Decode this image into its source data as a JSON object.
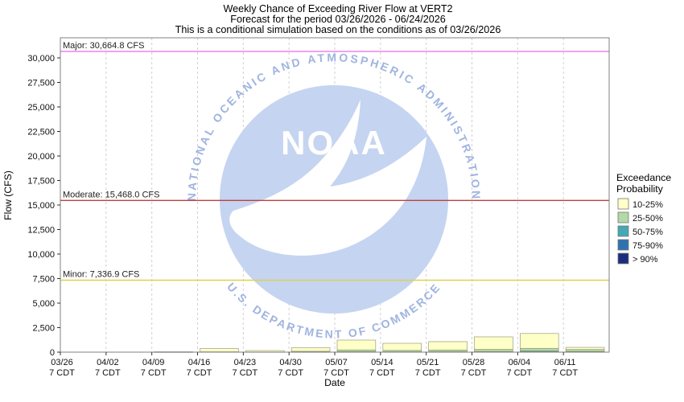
{
  "header": {
    "title": "Weekly Chance of Exceeding River Flow at VERT2",
    "subtitle": "Forecast for the period 03/26/2026 - 06/24/2026",
    "note": "This is a conditional simulation based on the conditions as of 03/26/2026"
  },
  "chart_data": {
    "type": "bar",
    "stacked": true,
    "title": "Weekly Chance of Exceeding River Flow at VERT2",
    "xlabel": "Date",
    "ylabel": "Flow (CFS)",
    "ylim": [
      0,
      32050
    ],
    "yticks": [
      0,
      2500,
      5000,
      7500,
      10000,
      12500,
      15000,
      17500,
      20000,
      22500,
      25000,
      27500,
      30000
    ],
    "grid": "vertical-dashed",
    "legend_position": "right",
    "categories": [
      "03/26",
      "04/02",
      "04/09",
      "04/16",
      "04/23",
      "04/30",
      "05/07",
      "05/14",
      "05/21",
      "05/28",
      "06/04",
      "06/11"
    ],
    "tick_time_label": "7 CDT",
    "series": [
      {
        "name": "> 90%",
        "color": "#1b2e7d",
        "values": [
          0,
          0,
          0,
          0,
          0,
          0,
          0,
          0,
          0,
          0,
          0,
          0
        ]
      },
      {
        "name": "75-90%",
        "color": "#2f72b0",
        "values": [
          0,
          0,
          0,
          0,
          0,
          0,
          0,
          0,
          0,
          0,
          30,
          0
        ]
      },
      {
        "name": "50-75%",
        "color": "#46a8b4",
        "values": [
          0,
          0,
          0,
          0,
          0,
          20,
          60,
          40,
          50,
          70,
          100,
          80
        ]
      },
      {
        "name": "25-50%",
        "color": "#b2d9a6",
        "values": [
          0,
          0,
          10,
          40,
          20,
          70,
          170,
          140,
          160,
          210,
          260,
          190
        ]
      },
      {
        "name": "10-25%",
        "color": "#ffffc8",
        "values": [
          0,
          0,
          30,
          320,
          140,
          360,
          1000,
          720,
          860,
          1280,
          1510,
          220
        ]
      }
    ],
    "thresholds": [
      {
        "name": "Major",
        "label": "Major: 30,664.8 CFS",
        "value": 30664.8,
        "color": "#e878e8"
      },
      {
        "name": "Moderate",
        "label": "Moderate: 15,468.0 CFS",
        "value": 15468.0,
        "color": "#bf4040"
      },
      {
        "name": "Minor",
        "label": "Minor: 7,336.9 CFS",
        "value": 7336.9,
        "color": "#dcd24f"
      }
    ],
    "legend": {
      "title_lines": [
        "Exceedance",
        "Probability"
      ],
      "entries": [
        {
          "label": "10-25%",
          "color": "#ffffc8"
        },
        {
          "label": "25-50%",
          "color": "#b2d9a6"
        },
        {
          "label": "50-75%",
          "color": "#46a8b4"
        },
        {
          "label": "75-90%",
          "color": "#2f72b0"
        },
        {
          "label": "> 90%",
          "color": "#1b2e7d"
        }
      ]
    }
  },
  "watermark": {
    "logo_text": "NOAA",
    "top_arc_text": "NATIONAL OCEANIC AND ATMOSPHERIC ADMINISTRATION",
    "bottom_arc_text": "U.S. DEPARTMENT OF COMMERCE",
    "colors": {
      "circle": "#c5d4f0",
      "bird": "#ffffff",
      "arc_text": "#9fb4e0",
      "logo_text": "#ffffff"
    }
  }
}
